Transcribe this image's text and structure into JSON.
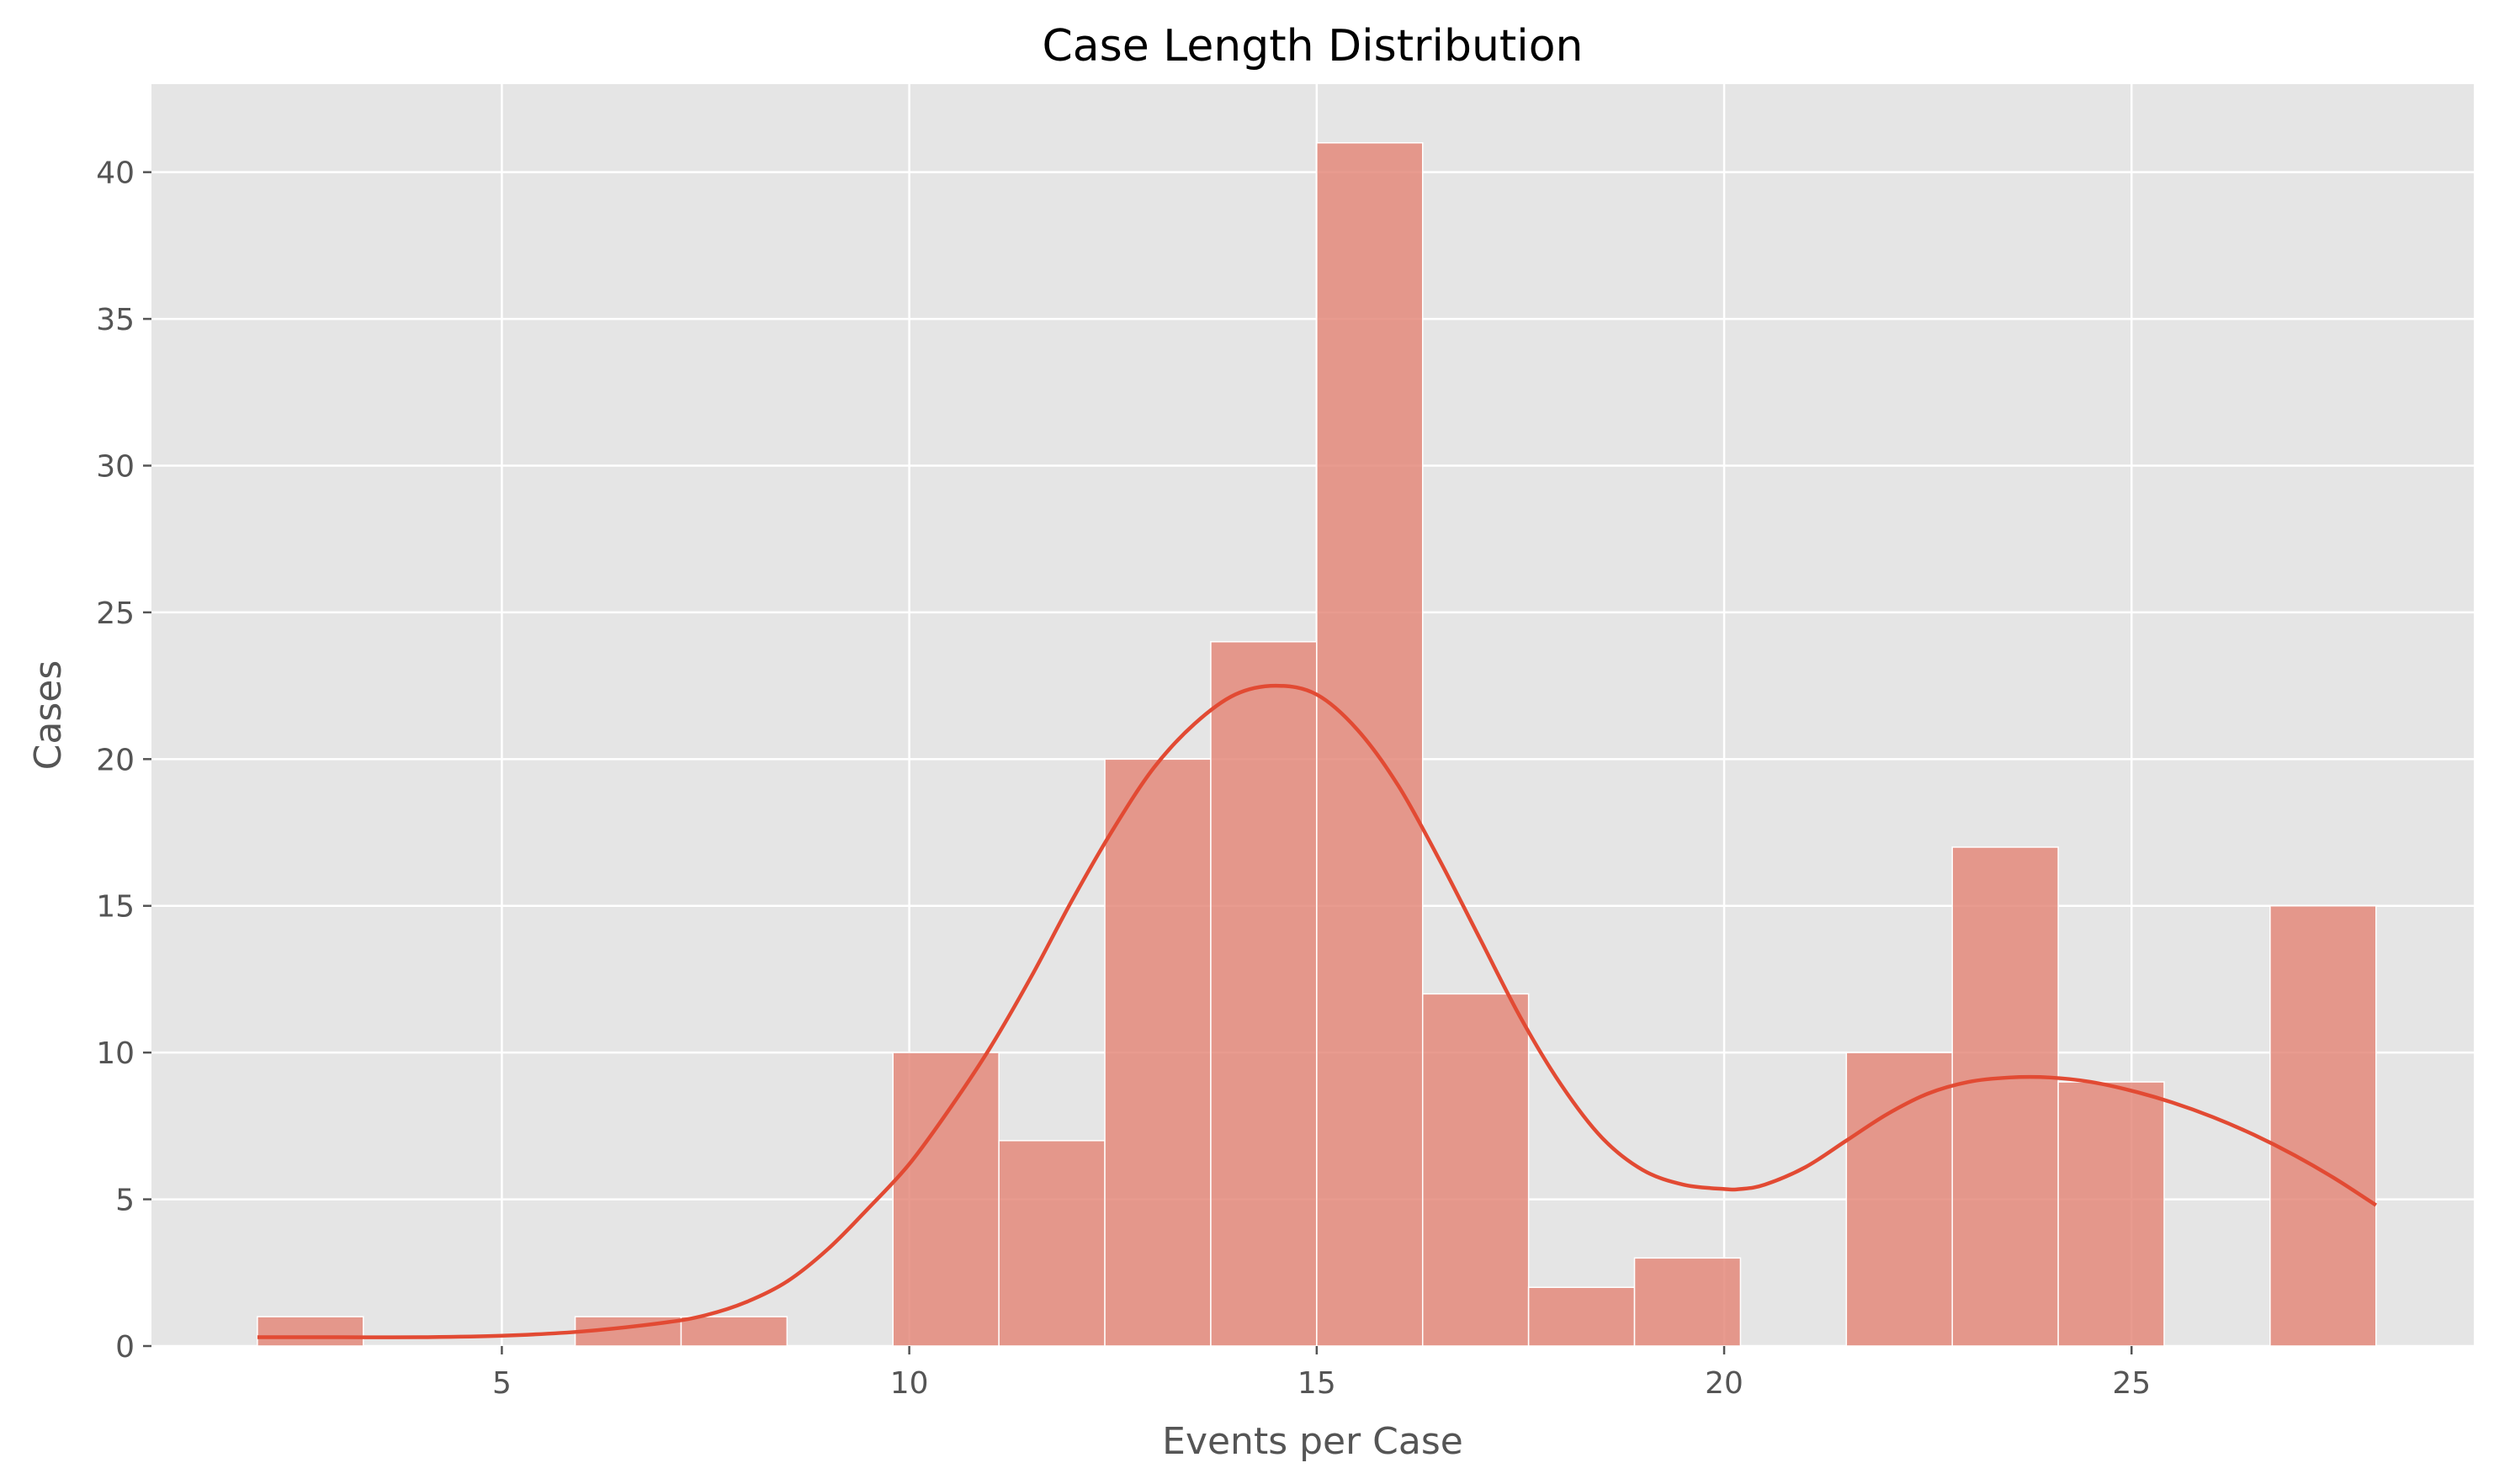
{
  "chart_data": {
    "type": "bar",
    "subtype": "histogram-with-kde",
    "title": "Case Length Distribution",
    "xlabel": "Events per Case",
    "ylabel": "Cases",
    "xlim": [
      0.7,
      29.2
    ],
    "ylim": [
      0,
      43
    ],
    "x_ticks": [
      5,
      10,
      15,
      20,
      25
    ],
    "y_ticks": [
      0,
      5,
      10,
      15,
      20,
      25,
      30,
      35,
      40
    ],
    "grid": true,
    "legend": "none",
    "bins": [
      {
        "x0": 2.0,
        "x1": 3.3,
        "count": 1
      },
      {
        "x0": 3.3,
        "x1": 4.6,
        "count": 0
      },
      {
        "x0": 4.6,
        "x1": 5.9,
        "count": 0
      },
      {
        "x0": 5.9,
        "x1": 7.2,
        "count": 1
      },
      {
        "x0": 7.2,
        "x1": 8.5,
        "count": 1
      },
      {
        "x0": 8.5,
        "x1": 9.8,
        "count": 0
      },
      {
        "x0": 9.8,
        "x1": 11.1,
        "count": 10
      },
      {
        "x0": 11.1,
        "x1": 12.4,
        "count": 7
      },
      {
        "x0": 12.4,
        "x1": 13.7,
        "count": 20
      },
      {
        "x0": 13.7,
        "x1": 15.0,
        "count": 24
      },
      {
        "x0": 15.0,
        "x1": 16.3,
        "count": 41
      },
      {
        "x0": 16.3,
        "x1": 17.6,
        "count": 12
      },
      {
        "x0": 17.6,
        "x1": 18.9,
        "count": 2
      },
      {
        "x0": 18.9,
        "x1": 20.2,
        "count": 3
      },
      {
        "x0": 20.2,
        "x1": 21.5,
        "count": 0
      },
      {
        "x0": 21.5,
        "x1": 22.8,
        "count": 10
      },
      {
        "x0": 22.8,
        "x1": 24.1,
        "count": 17
      },
      {
        "x0": 24.1,
        "x1": 25.4,
        "count": 9
      },
      {
        "x0": 25.4,
        "x1": 26.7,
        "count": 0
      },
      {
        "x0": 26.7,
        "x1": 28.0,
        "count": 15
      }
    ],
    "kde": {
      "x": [
        2.0,
        3.0,
        4.0,
        5.0,
        6.0,
        7.0,
        7.5,
        8.0,
        8.5,
        9.0,
        9.5,
        10.0,
        10.5,
        11.0,
        11.5,
        12.0,
        12.5,
        13.0,
        13.5,
        14.0,
        14.5,
        15.0,
        15.5,
        16.0,
        16.5,
        17.0,
        17.5,
        18.0,
        18.5,
        19.0,
        19.5,
        20.0,
        20.2,
        20.5,
        21.0,
        21.5,
        22.0,
        22.5,
        23.0,
        23.5,
        24.0,
        24.5,
        25.0,
        25.5,
        26.0,
        26.5,
        27.0,
        27.5,
        28.0
      ],
      "y": [
        0.3,
        0.3,
        0.3,
        0.35,
        0.5,
        0.8,
        1.05,
        1.5,
        2.2,
        3.3,
        4.7,
        6.2,
        8.1,
        10.2,
        12.6,
        15.2,
        17.6,
        19.7,
        21.2,
        22.2,
        22.5,
        22.2,
        21.0,
        19.1,
        16.6,
        13.9,
        11.2,
        8.9,
        7.1,
        6.0,
        5.5,
        5.35,
        5.35,
        5.5,
        6.1,
        7.0,
        7.9,
        8.6,
        9.0,
        9.15,
        9.15,
        9.0,
        8.7,
        8.3,
        7.8,
        7.2,
        6.5,
        5.7,
        4.8
      ]
    },
    "colors": {
      "background": "#ffffff",
      "plot_background": "#e5e5e5",
      "bar_fill": "#e48a7b",
      "bar_opacity": 0.85,
      "kde_line": "#e24a33"
    }
  }
}
